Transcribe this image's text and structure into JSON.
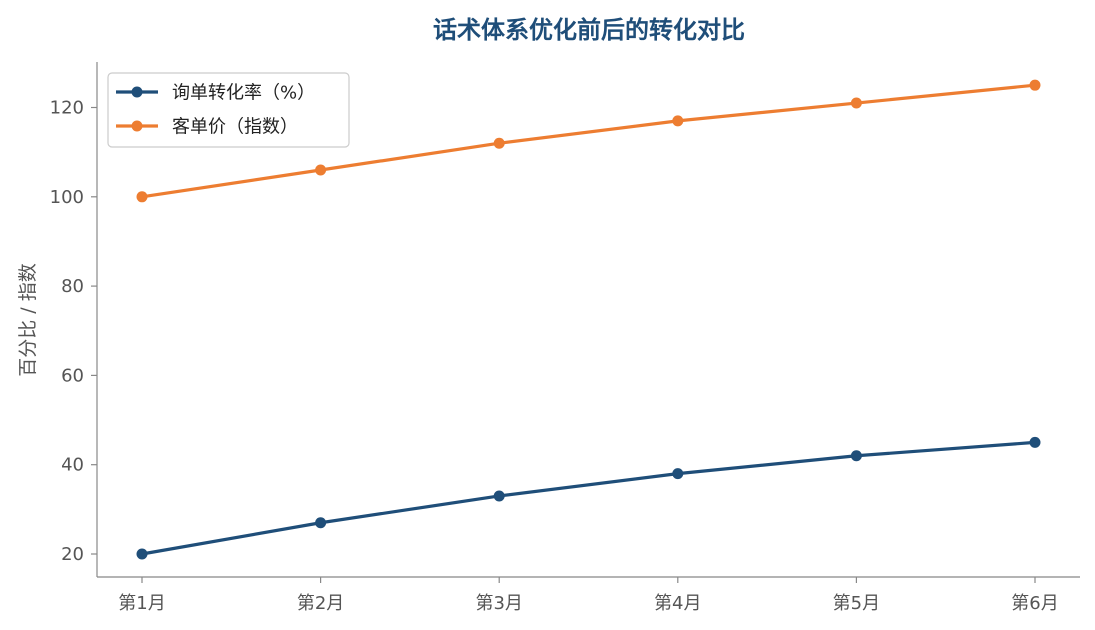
{
  "chart_data": {
    "type": "line",
    "title": "话术体系优化前后的转化对比",
    "xlabel": "",
    "ylabel": "百分比 / 指数",
    "categories": [
      "第1月",
      "第2月",
      "第3月",
      "第4月",
      "第5月",
      "第6月"
    ],
    "yticks": [
      20,
      40,
      60,
      80,
      100,
      120
    ],
    "ylim": [
      15,
      130
    ],
    "grid": false,
    "legend_position": "top-left",
    "series": [
      {
        "name": "询单转化率（%）",
        "values": [
          20,
          27,
          33,
          38,
          42,
          45
        ],
        "color": "#1f4e79"
      },
      {
        "name": "客单价（指数）",
        "values": [
          100,
          106,
          112,
          117,
          121,
          125
        ],
        "color": "#ed7d31"
      }
    ]
  }
}
